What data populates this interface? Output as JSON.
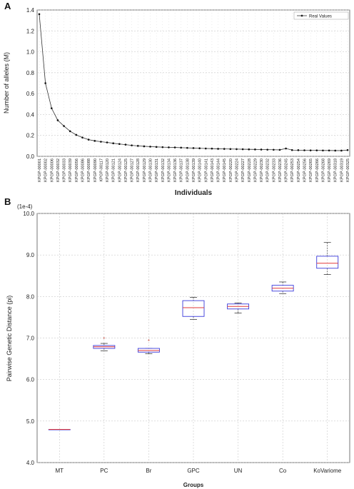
{
  "panel_a": {
    "letter": "A"
  },
  "panel_b": {
    "letter": "B"
  },
  "chart_data": [
    {
      "type": "line",
      "xlabel": "Individuals",
      "ylabel": "Number of alleles (M)",
      "ylim": [
        0,
        1.4
      ],
      "yticks": [
        "0.0",
        "0.2",
        "0.4",
        "0.6",
        "0.8",
        "1.0",
        "1.2",
        "1.4"
      ],
      "grid": true,
      "legend_position": "top-right",
      "series": [
        {
          "name": "Real Values",
          "x": [
            "KPGP-00001",
            "KPGP-00002",
            "KPGP-00006",
            "KPGP-00032",
            "KPGP-00033",
            "KPGP-00039",
            "KPGP-00056",
            "KPGP-00086",
            "KPGP-00088",
            "KPGP-00090",
            "KPGP-00117",
            "KPGP-00120",
            "KPGP-00121",
            "KPGP-00124",
            "KPGP-00125",
            "KPGP-00127",
            "KPGP-00128",
            "KPGP-00129",
            "KPGP-00130",
            "KPGP-00131",
            "KPGP-00132",
            "KPGP-00134",
            "KPGP-00136",
            "KPGP-00137",
            "KPGP-00138",
            "KPGP-00139",
            "KPGP-00140",
            "KPGP-00141",
            "KPGP-00143",
            "KPGP-00144",
            "KPGP-00145",
            "KPGP-00220",
            "KPGP-00224",
            "KPGP-00227",
            "KPGP-00228",
            "KPGP-00229",
            "KPGP-00230",
            "KPGP-00232",
            "KPGP-00233",
            "KPGP-00236",
            "KPGP-00245",
            "KPGP-00253",
            "KPGP-00254",
            "KPGP-00256",
            "KPGP-00265",
            "KPGP-00266",
            "KPGP-00268",
            "KPGP-00269",
            "KPGP-00318",
            "KPGP-00319",
            "KPGP-00325"
          ],
          "values": [
            1.36,
            0.7,
            0.46,
            0.345,
            0.29,
            0.24,
            0.205,
            0.18,
            0.16,
            0.148,
            0.14,
            0.133,
            0.125,
            0.118,
            0.112,
            0.105,
            0.1,
            0.096,
            0.093,
            0.09,
            0.088,
            0.086,
            0.085,
            0.083,
            0.081,
            0.079,
            0.077,
            0.075,
            0.074,
            0.072,
            0.071,
            0.07,
            0.069,
            0.068,
            0.067,
            0.066,
            0.065,
            0.064,
            0.063,
            0.062,
            0.075,
            0.06,
            0.059,
            0.058,
            0.057,
            0.057,
            0.056,
            0.056,
            0.055,
            0.055,
            0.06
          ]
        }
      ]
    },
    {
      "type": "box",
      "xlabel": "Groups",
      "ylabel": "Pairwise Genetic Distance (pi)",
      "scale_note": "(1e-4)",
      "ylim": [
        4.0,
        10.0
      ],
      "yticks": [
        "4.0",
        "5.0",
        "6.0",
        "7.0",
        "8.0",
        "9.0",
        "10.0"
      ],
      "grid": true,
      "categories": [
        "MT",
        "PC",
        "Br",
        "GPC",
        "UN",
        "Co",
        "KoVariome"
      ],
      "boxes": [
        {
          "min": 4.8,
          "q1": 4.8,
          "median": 4.8,
          "q3": 4.8,
          "max": 4.8,
          "outliers": []
        },
        {
          "min": 6.69,
          "q1": 6.75,
          "median": 6.79,
          "q3": 6.82,
          "max": 6.87,
          "outliers": [
            7.0
          ]
        },
        {
          "min": 6.62,
          "q1": 6.66,
          "median": 6.7,
          "q3": 6.75,
          "max": 6.75,
          "outliers": [
            6.95
          ]
        },
        {
          "min": 7.45,
          "q1": 7.52,
          "median": 7.73,
          "q3": 7.9,
          "max": 7.98,
          "outliers": []
        },
        {
          "min": 7.6,
          "q1": 7.7,
          "median": 7.76,
          "q3": 7.82,
          "max": 7.84,
          "outliers": []
        },
        {
          "min": 8.07,
          "q1": 8.13,
          "median": 8.2,
          "q3": 8.27,
          "max": 8.35,
          "outliers": []
        },
        {
          "min": 8.53,
          "q1": 8.68,
          "median": 8.8,
          "q3": 8.97,
          "max": 9.3,
          "outliers": []
        }
      ]
    }
  ],
  "colors": {
    "line": "#333333",
    "box_edge": "#3a3adb",
    "median": "#e23a3a",
    "whisker": "#1f1f1f",
    "outlier": "#c0392b",
    "grid": "#bdbdbd"
  }
}
